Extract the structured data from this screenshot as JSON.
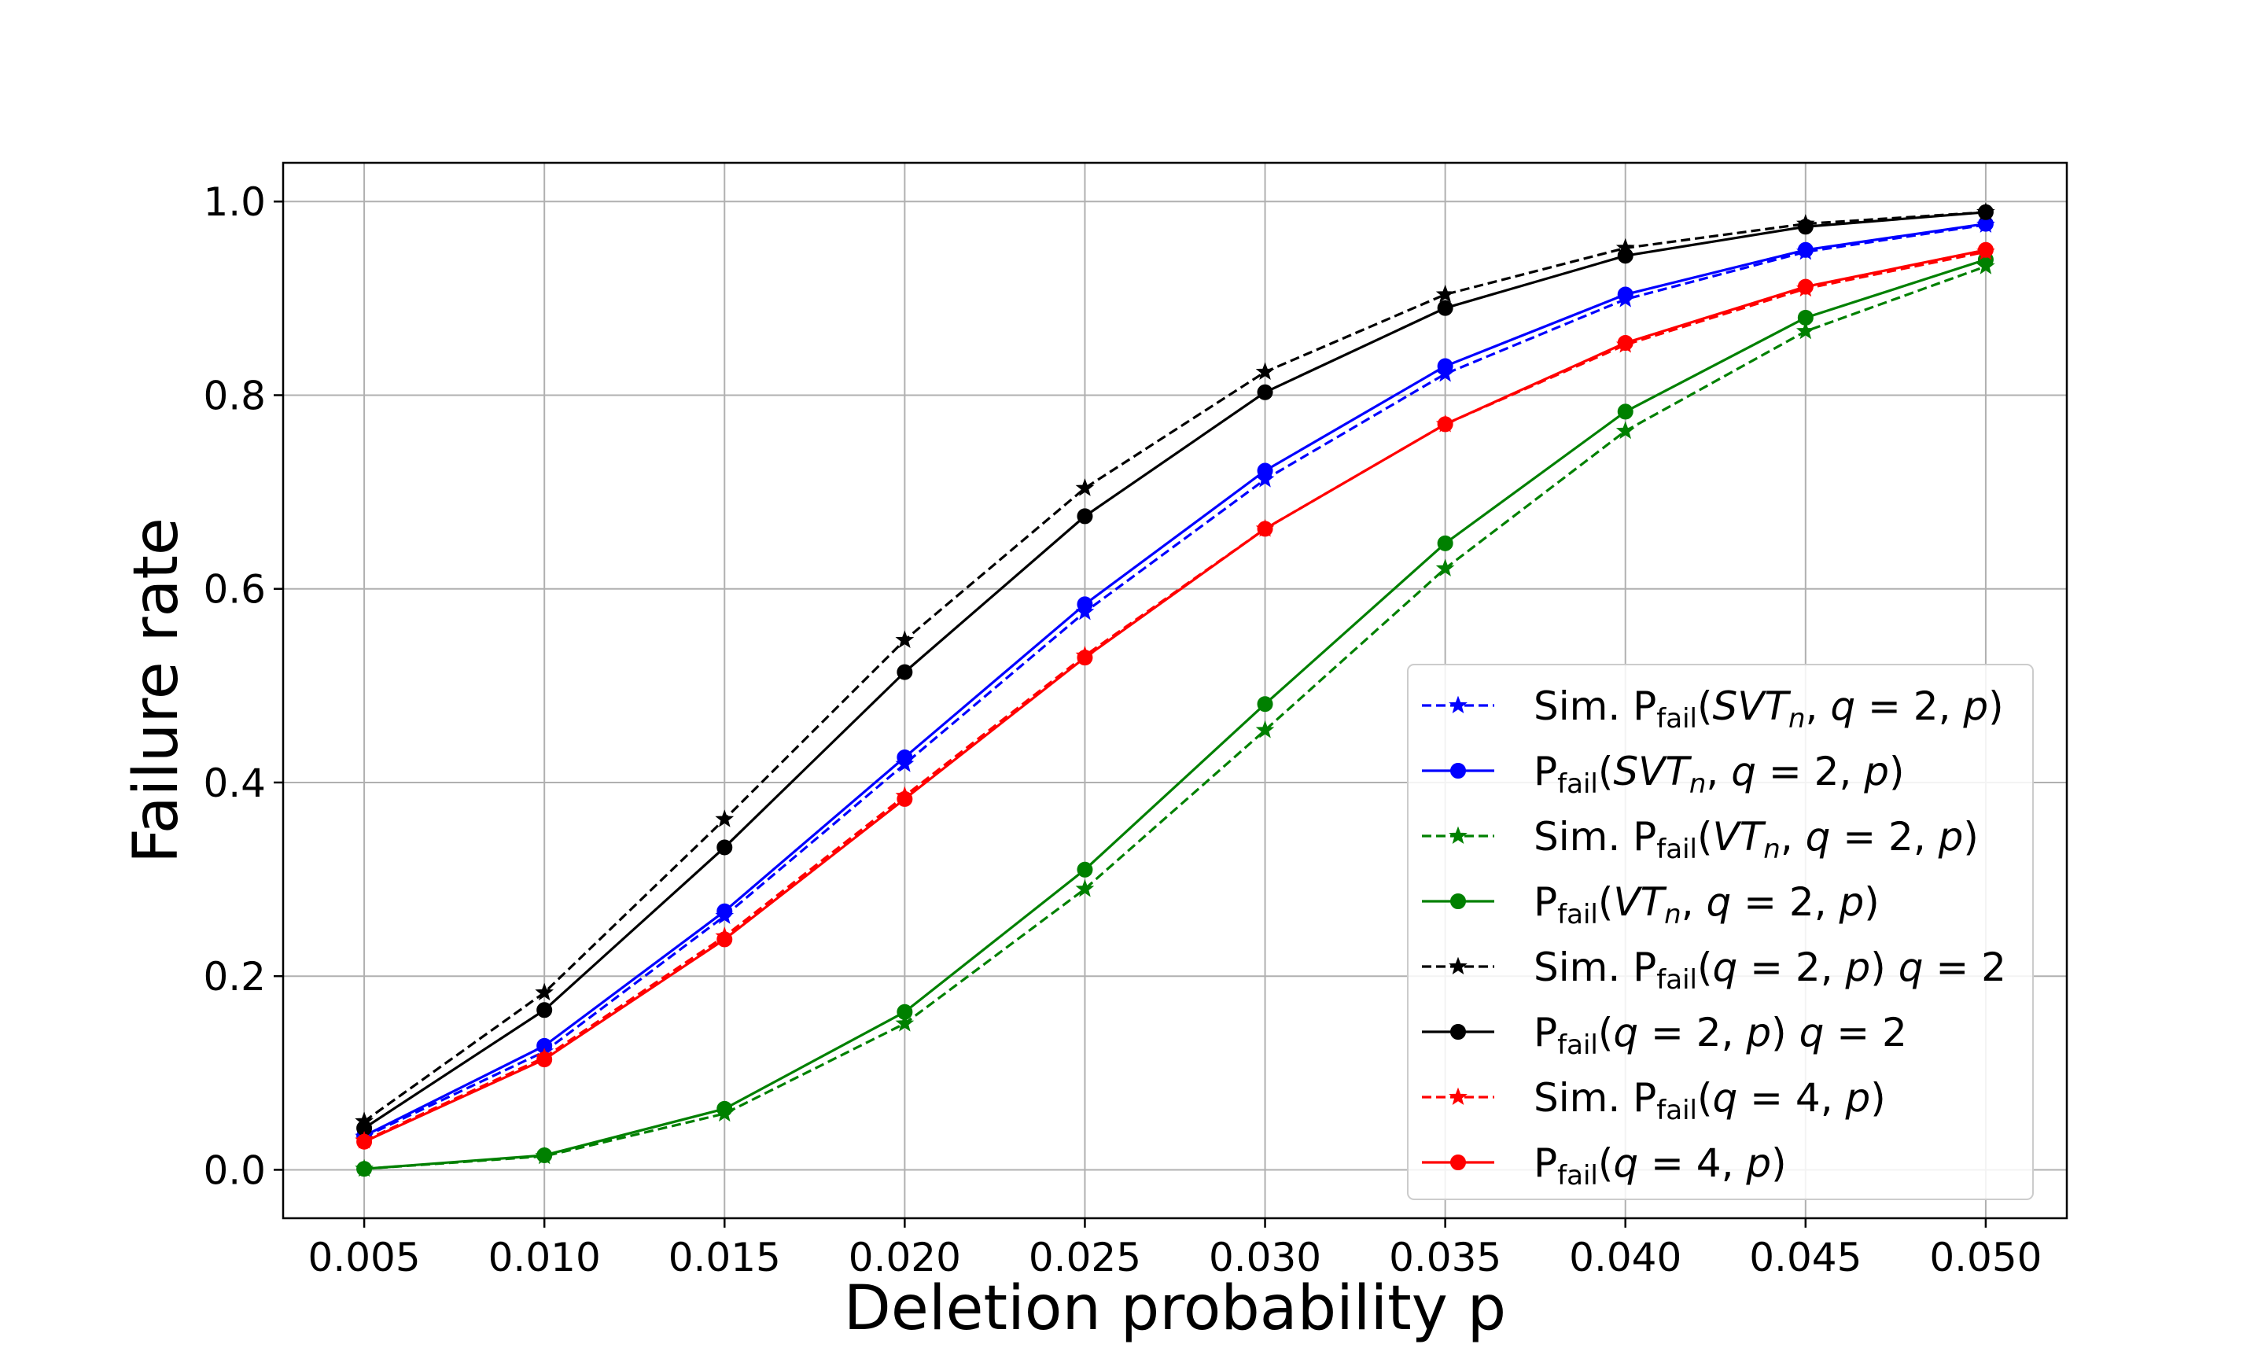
{
  "chart_data": {
    "type": "line",
    "title": "",
    "xlabel": "Deletion probability p",
    "ylabel": "Failure rate",
    "x": [
      0.005,
      0.01,
      0.015,
      0.02,
      0.025,
      0.03,
      0.035,
      0.04,
      0.045,
      0.05
    ],
    "x_tick_labels": [
      "0.005",
      "0.010",
      "0.015",
      "0.020",
      "0.025",
      "0.030",
      "0.035",
      "0.040",
      "0.045",
      "0.050"
    ],
    "y_tick_values": [
      0.0,
      0.2,
      0.4,
      0.6,
      0.8,
      1.0
    ],
    "y_tick_labels": [
      "0.0",
      "0.2",
      "0.4",
      "0.6",
      "0.8",
      "1.0"
    ],
    "xlim": [
      0.00275,
      0.05225
    ],
    "ylim": [
      -0.05,
      1.04
    ],
    "grid": true,
    "legend_position": "lower-right",
    "series": [
      {
        "name": "Sim. Pfail(SVTn, q = 2, p)",
        "legend": [
          {
            "t": "Sim. P"
          },
          {
            "t": "fail",
            "sub": true
          },
          {
            "t": "("
          },
          {
            "t": "SVT",
            "it": true
          },
          {
            "t": "n",
            "it": true,
            "sub": true
          },
          {
            "t": ", "
          },
          {
            "t": "q",
            "it": true
          },
          {
            "t": " = 2, "
          },
          {
            "t": "p",
            "it": true
          },
          {
            "t": ")"
          }
        ],
        "color": "#0000ff",
        "linestyle": "dashed",
        "marker": "star",
        "values": [
          0.034,
          0.122,
          0.262,
          0.419,
          0.576,
          0.713,
          0.822,
          0.899,
          0.948,
          0.976
        ]
      },
      {
        "name": "Pfail(SVTn, q = 2, p)",
        "legend": [
          {
            "t": "P"
          },
          {
            "t": "fail",
            "sub": true
          },
          {
            "t": "("
          },
          {
            "t": "SVT",
            "it": true
          },
          {
            "t": "n",
            "it": true,
            "sub": true
          },
          {
            "t": ", "
          },
          {
            "t": "q",
            "it": true
          },
          {
            "t": " = 2, "
          },
          {
            "t": "p",
            "it": true
          },
          {
            "t": ")"
          }
        ],
        "color": "#0000ff",
        "linestyle": "solid",
        "marker": "circle",
        "values": [
          0.035,
          0.128,
          0.267,
          0.426,
          0.584,
          0.722,
          0.83,
          0.904,
          0.95,
          0.977
        ]
      },
      {
        "name": "Sim. Pfail(VTn, q = 2, p)",
        "legend": [
          {
            "t": "Sim. P"
          },
          {
            "t": "fail",
            "sub": true
          },
          {
            "t": "("
          },
          {
            "t": "VT",
            "it": true
          },
          {
            "t": "n",
            "it": true,
            "sub": true
          },
          {
            "t": ", "
          },
          {
            "t": "q",
            "it": true
          },
          {
            "t": " = 2, "
          },
          {
            "t": "p",
            "it": true
          },
          {
            "t": ")"
          }
        ],
        "color": "#008000",
        "linestyle": "dashed",
        "marker": "star",
        "values": [
          0.001,
          0.014,
          0.058,
          0.151,
          0.29,
          0.454,
          0.621,
          0.763,
          0.866,
          0.933
        ]
      },
      {
        "name": "Pfail(VTn, q = 2, p)",
        "legend": [
          {
            "t": "P"
          },
          {
            "t": "fail",
            "sub": true
          },
          {
            "t": "("
          },
          {
            "t": "VT",
            "it": true
          },
          {
            "t": "n",
            "it": true,
            "sub": true
          },
          {
            "t": ", "
          },
          {
            "t": "q",
            "it": true
          },
          {
            "t": " = 2, "
          },
          {
            "t": "p",
            "it": true
          },
          {
            "t": ")"
          }
        ],
        "color": "#008000",
        "linestyle": "solid",
        "marker": "circle",
        "values": [
          0.001,
          0.015,
          0.063,
          0.163,
          0.31,
          0.481,
          0.647,
          0.783,
          0.88,
          0.94
        ]
      },
      {
        "name": "Sim. Pfail(q = 2, p) q = 2",
        "legend": [
          {
            "t": "Sim. P"
          },
          {
            "t": "fail",
            "sub": true
          },
          {
            "t": "("
          },
          {
            "t": "q",
            "it": true
          },
          {
            "t": " = 2, "
          },
          {
            "t": "p",
            "it": true
          },
          {
            "t": ") "
          },
          {
            "t": "q",
            "it": true
          },
          {
            "t": " = 2"
          }
        ],
        "color": "#000000",
        "linestyle": "dashed",
        "marker": "star",
        "values": [
          0.05,
          0.183,
          0.362,
          0.547,
          0.704,
          0.824,
          0.904,
          0.952,
          0.977,
          0.989
        ]
      },
      {
        "name": "Pfail(q = 2, p) q = 2",
        "legend": [
          {
            "t": "P"
          },
          {
            "t": "fail",
            "sub": true
          },
          {
            "t": "("
          },
          {
            "t": "q",
            "it": true
          },
          {
            "t": " = 2, "
          },
          {
            "t": "p",
            "it": true
          },
          {
            "t": ") "
          },
          {
            "t": "q",
            "it": true
          },
          {
            "t": " = 2"
          }
        ],
        "color": "#000000",
        "linestyle": "solid",
        "marker": "circle",
        "values": [
          0.043,
          0.165,
          0.333,
          0.514,
          0.675,
          0.803,
          0.89,
          0.944,
          0.974,
          0.989
        ]
      },
      {
        "name": "Sim. Pfail(q = 4, p)",
        "legend": [
          {
            "t": "Sim. P"
          },
          {
            "t": "fail",
            "sub": true
          },
          {
            "t": "("
          },
          {
            "t": "q",
            "it": true
          },
          {
            "t": " = 4, "
          },
          {
            "t": "p",
            "it": true
          },
          {
            "t": ")"
          }
        ],
        "color": "#ff0000",
        "linestyle": "dashed",
        "marker": "star",
        "values": [
          0.03,
          0.116,
          0.241,
          0.386,
          0.531,
          0.662,
          0.77,
          0.852,
          0.91,
          0.948
        ]
      },
      {
        "name": "Pfail(q = 4, p)",
        "legend": [
          {
            "t": "P"
          },
          {
            "t": "fail",
            "sub": true
          },
          {
            "t": "("
          },
          {
            "t": "q",
            "it": true
          },
          {
            "t": " = 4, "
          },
          {
            "t": "p",
            "it": true
          },
          {
            "t": ")"
          }
        ],
        "color": "#ff0000",
        "linestyle": "solid",
        "marker": "circle",
        "values": [
          0.029,
          0.114,
          0.238,
          0.383,
          0.529,
          0.662,
          0.77,
          0.854,
          0.912,
          0.95
        ]
      }
    ]
  }
}
